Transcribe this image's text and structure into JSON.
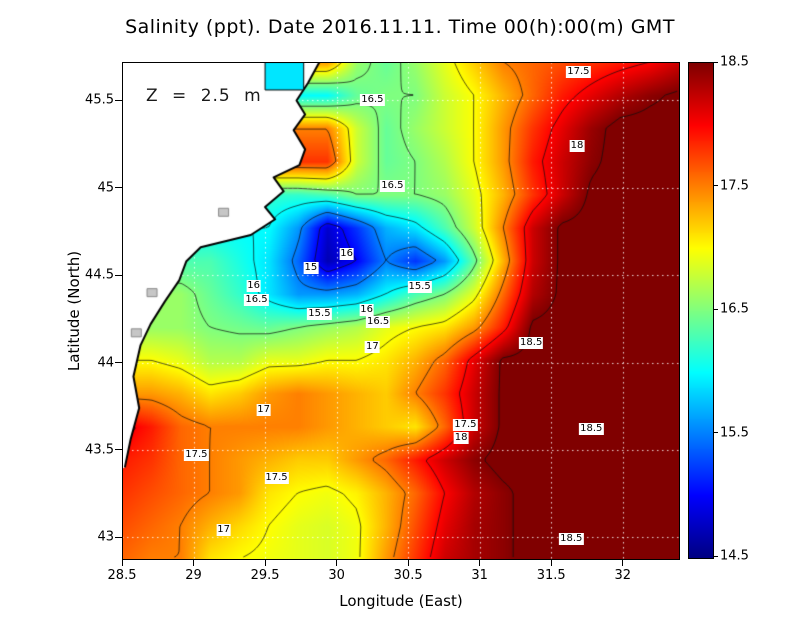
{
  "chart_data": {
    "type": "heatmap",
    "title": "Salinity (ppt). Date 2016.11.11. Time 00(h):00(m) GMT",
    "annotation": "Z = 2.5 m",
    "xlabel": "Longitude (East)",
    "ylabel": "Latitude (North)",
    "units": "ppt",
    "x_range": [
      28.5,
      32.4
    ],
    "y_range": [
      42.87,
      45.72
    ],
    "x_ticks": [
      "28.5",
      "29",
      "29.5",
      "30",
      "30.5",
      "31",
      "31.5",
      "32"
    ],
    "y_ticks": [
      "43",
      "43.5",
      "44",
      "44.5",
      "45",
      "45.5"
    ],
    "colorbar": {
      "min": 14.5,
      "max": 18.5,
      "tick_labels": [
        "18.5",
        "17.5",
        "16.5",
        "15.5",
        "14.5"
      ],
      "colormap": "jet"
    },
    "grid_lon": {
      "start": 28.5,
      "end": 32.4,
      "n": 20
    },
    "grid_lat": {
      "start": 45.72,
      "end": 42.87,
      "n": 16
    },
    "salinity_grid": [
      [
        null,
        null,
        null,
        null,
        null,
        null,
        null,
        17.4,
        16.6,
        16.4,
        16.6,
        16.9,
        17.2,
        17.5,
        17.6,
        17.7,
        17.8,
        17.9,
        18.0,
        18.2
      ],
      [
        null,
        null,
        null,
        null,
        null,
        null,
        null,
        16.0,
        16.4,
        16.5,
        16.5,
        16.8,
        17.0,
        17.3,
        17.6,
        17.9,
        18.1,
        18.3,
        18.45,
        18.55
      ],
      [
        null,
        null,
        null,
        null,
        null,
        null,
        null,
        17.5,
        16.8,
        16.4,
        16.6,
        16.8,
        17.0,
        17.4,
        17.8,
        18.1,
        18.4,
        18.6,
        18.6,
        18.6
      ],
      [
        null,
        null,
        null,
        null,
        null,
        null,
        null,
        17.8,
        16.8,
        16.4,
        16.5,
        16.7,
        17.0,
        17.4,
        17.9,
        18.2,
        18.45,
        18.6,
        18.6,
        18.6
      ],
      [
        null,
        null,
        null,
        null,
        null,
        null,
        16.2,
        16.3,
        16.5,
        16.5,
        16.5,
        16.6,
        16.9,
        17.3,
        17.8,
        18.2,
        18.55,
        18.6,
        18.6,
        18.6
      ],
      [
        null,
        null,
        null,
        null,
        null,
        16.0,
        15.6,
        14.8,
        15.2,
        15.7,
        15.9,
        16.3,
        16.8,
        17.5,
        18.2,
        18.55,
        18.6,
        18.6,
        18.6,
        18.6
      ],
      [
        null,
        null,
        null,
        16.3,
        16.1,
        15.9,
        15.4,
        14.7,
        15.0,
        15.5,
        15.2,
        15.6,
        16.4,
        17.3,
        18.2,
        18.55,
        18.6,
        18.6,
        18.6,
        18.6
      ],
      [
        null,
        null,
        16.6,
        16.4,
        16.2,
        15.9,
        15.6,
        15.6,
        15.7,
        16.0,
        16.3,
        16.5,
        16.9,
        17.6,
        18.3,
        18.55,
        18.6,
        18.6,
        18.6,
        18.6
      ],
      [
        null,
        null,
        16.6,
        16.5,
        16.45,
        16.4,
        16.5,
        16.6,
        16.7,
        16.9,
        17.0,
        17.1,
        17.4,
        17.9,
        18.55,
        18.6,
        18.6,
        18.6,
        18.6,
        18.6
      ],
      [
        null,
        17.0,
        16.9,
        16.7,
        16.7,
        16.9,
        16.9,
        17.0,
        17.0,
        17.1,
        17.3,
        17.6,
        18.1,
        18.55,
        18.6,
        18.6,
        18.6,
        18.6,
        18.6,
        18.6
      ],
      [
        null,
        17.4,
        17.3,
        17.1,
        17.2,
        17.4,
        17.5,
        17.4,
        17.3,
        17.2,
        17.5,
        17.8,
        18.2,
        18.55,
        18.6,
        18.6,
        18.6,
        18.6,
        18.6,
        18.6
      ],
      [
        18.1,
        17.9,
        17.6,
        17.5,
        17.5,
        17.5,
        17.5,
        17.4,
        17.3,
        17.2,
        17.1,
        17.6,
        18.2,
        18.55,
        18.6,
        18.6,
        18.6,
        18.6,
        18.6,
        18.6
      ],
      [
        17.9,
        17.8,
        17.6,
        17.5,
        17.4,
        17.3,
        17.2,
        17.2,
        17.4,
        17.6,
        17.9,
        18.2,
        18.45,
        18.6,
        18.6,
        18.6,
        18.6,
        18.6,
        18.6,
        18.6
      ],
      [
        17.8,
        17.7,
        17.6,
        17.5,
        17.4,
        17.1,
        17.0,
        16.95,
        17.05,
        17.3,
        17.6,
        18.0,
        18.3,
        18.45,
        18.6,
        18.6,
        18.6,
        18.6,
        18.6,
        18.6
      ],
      [
        17.7,
        17.6,
        17.5,
        17.3,
        17.15,
        17.0,
        16.9,
        16.85,
        16.95,
        17.3,
        17.7,
        18.1,
        18.35,
        18.45,
        18.6,
        18.6,
        18.6,
        18.6,
        18.6,
        18.6
      ],
      [
        17.6,
        17.5,
        17.5,
        17.1,
        17.0,
        16.95,
        16.9,
        16.85,
        16.95,
        17.4,
        17.8,
        18.2,
        18.35,
        18.45,
        18.6,
        18.6,
        18.6,
        18.6,
        18.6,
        18.6
      ]
    ],
    "contour_levels": [
      15,
      15.5,
      16,
      16.5,
      17,
      17.5,
      18,
      18.5
    ],
    "contour_labels": [
      {
        "text": "17.5",
        "lon": 31.69,
        "lat": 45.66
      },
      {
        "text": "18",
        "lon": 31.68,
        "lat": 45.24
      },
      {
        "text": "16.5",
        "lon": 30.25,
        "lat": 45.5
      },
      {
        "text": "16.5",
        "lon": 30.39,
        "lat": 45.01
      },
      {
        "text": "16",
        "lon": 30.07,
        "lat": 44.62
      },
      {
        "text": "15",
        "lon": 29.82,
        "lat": 44.54
      },
      {
        "text": "16",
        "lon": 29.42,
        "lat": 44.44
      },
      {
        "text": "16.5",
        "lon": 29.44,
        "lat": 44.36
      },
      {
        "text": "15.5",
        "lon": 30.58,
        "lat": 44.43
      },
      {
        "text": "15.5",
        "lon": 29.88,
        "lat": 44.28
      },
      {
        "text": "16",
        "lon": 30.21,
        "lat": 44.3
      },
      {
        "text": "16.5",
        "lon": 30.29,
        "lat": 44.23
      },
      {
        "text": "17",
        "lon": 30.25,
        "lat": 44.09
      },
      {
        "text": "18.5",
        "lon": 31.36,
        "lat": 44.11
      },
      {
        "text": "17",
        "lon": 29.49,
        "lat": 43.73
      },
      {
        "text": "17.5",
        "lon": 30.9,
        "lat": 43.64
      },
      {
        "text": "18",
        "lon": 30.87,
        "lat": 43.57
      },
      {
        "text": "18.5",
        "lon": 31.78,
        "lat": 43.62
      },
      {
        "text": "17.5",
        "lon": 29.02,
        "lat": 43.47
      },
      {
        "text": "17.5",
        "lon": 29.58,
        "lat": 43.34
      },
      {
        "text": "17",
        "lon": 29.21,
        "lat": 43.04
      },
      {
        "text": "18.5",
        "lon": 31.64,
        "lat": 42.99
      }
    ],
    "coastline": [
      [
        29.88,
        45.72
      ],
      [
        29.8,
        45.6
      ],
      [
        29.72,
        45.5
      ],
      [
        29.78,
        45.42
      ],
      [
        29.7,
        45.33
      ],
      [
        29.78,
        45.22
      ],
      [
        29.74,
        45.13
      ],
      [
        29.56,
        45.06
      ],
      [
        29.63,
        44.98
      ],
      [
        29.5,
        44.89
      ],
      [
        29.57,
        44.82
      ],
      [
        29.4,
        44.73
      ],
      [
        29.25,
        44.7
      ],
      [
        29.05,
        44.66
      ],
      [
        28.95,
        44.58
      ],
      [
        28.9,
        44.47
      ],
      [
        28.8,
        44.35
      ],
      [
        28.7,
        44.22
      ],
      [
        28.63,
        44.1
      ],
      [
        28.58,
        43.92
      ],
      [
        28.62,
        43.74
      ],
      [
        28.56,
        43.56
      ],
      [
        28.52,
        43.4
      ]
    ],
    "land_close": [
      [
        28.4,
        43.36
      ],
      [
        28.4,
        45.85
      ],
      [
        29.95,
        45.85
      ]
    ],
    "lagoon": {
      "lon": [
        29.5,
        29.77
      ],
      "lat": [
        45.56,
        45.72
      ],
      "salinity": 15.9
    },
    "lakes": [
      {
        "lon": 29.21,
        "lat": 44.86
      },
      {
        "lon": 28.71,
        "lat": 44.4
      },
      {
        "lon": 28.6,
        "lat": 44.17
      }
    ]
  }
}
